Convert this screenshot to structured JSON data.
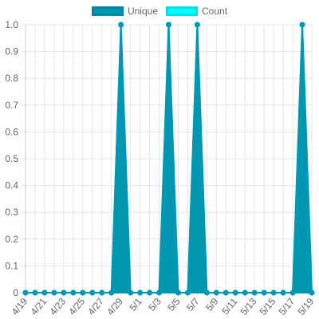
{
  "chart_data": {
    "type": "area",
    "categories": [
      "4/19",
      "4/20",
      "4/21",
      "4/22",
      "4/23",
      "4/24",
      "4/25",
      "4/26",
      "4/27",
      "4/28",
      "4/29",
      "4/30",
      "5/1",
      "5/2",
      "5/3",
      "5/4",
      "5/5",
      "5/6",
      "5/7",
      "5/8",
      "5/9",
      "5/10",
      "5/11",
      "5/12",
      "5/13",
      "5/14",
      "5/15",
      "5/16",
      "5/17",
      "5/18",
      "5/19"
    ],
    "x_tick_labels": [
      "4/19",
      "4/21",
      "4/23",
      "4/25",
      "4/27",
      "4/29",
      "5/1",
      "5/3",
      "5/5",
      "5/7",
      "5/9",
      "5/11",
      "5/13",
      "5/15",
      "5/17",
      "5/19"
    ],
    "series": [
      {
        "name": "Unique",
        "values": [
          0,
          0,
          0,
          0,
          0,
          0,
          0,
          0,
          0,
          0,
          1,
          0,
          0,
          0,
          0,
          1,
          0,
          0,
          1,
          0,
          0,
          0,
          0,
          0,
          0,
          0,
          0,
          0,
          0,
          1,
          0
        ],
        "fill_color": "#0097b2",
        "border_color": "#0097b2"
      },
      {
        "name": "Count",
        "values": [
          0,
          0,
          0,
          0,
          0,
          0,
          0,
          0,
          0,
          0,
          1,
          0,
          0,
          0,
          0,
          1,
          0,
          0,
          1,
          0,
          0,
          0,
          0,
          0,
          0,
          0,
          0,
          0,
          0,
          1,
          0
        ],
        "fill_color": "#00ffff",
        "border_color": "#00e5ee"
      }
    ],
    "y_ticks": [
      "0",
      "0.1",
      "0.2",
      "0.3",
      "0.4",
      "0.5",
      "0.6",
      "0.7",
      "0.8",
      "0.9",
      "1.0"
    ],
    "ylim": [
      0,
      1
    ],
    "grid": true,
    "legend_position": "top-center",
    "title": "",
    "xlabel": "",
    "ylabel": ""
  }
}
